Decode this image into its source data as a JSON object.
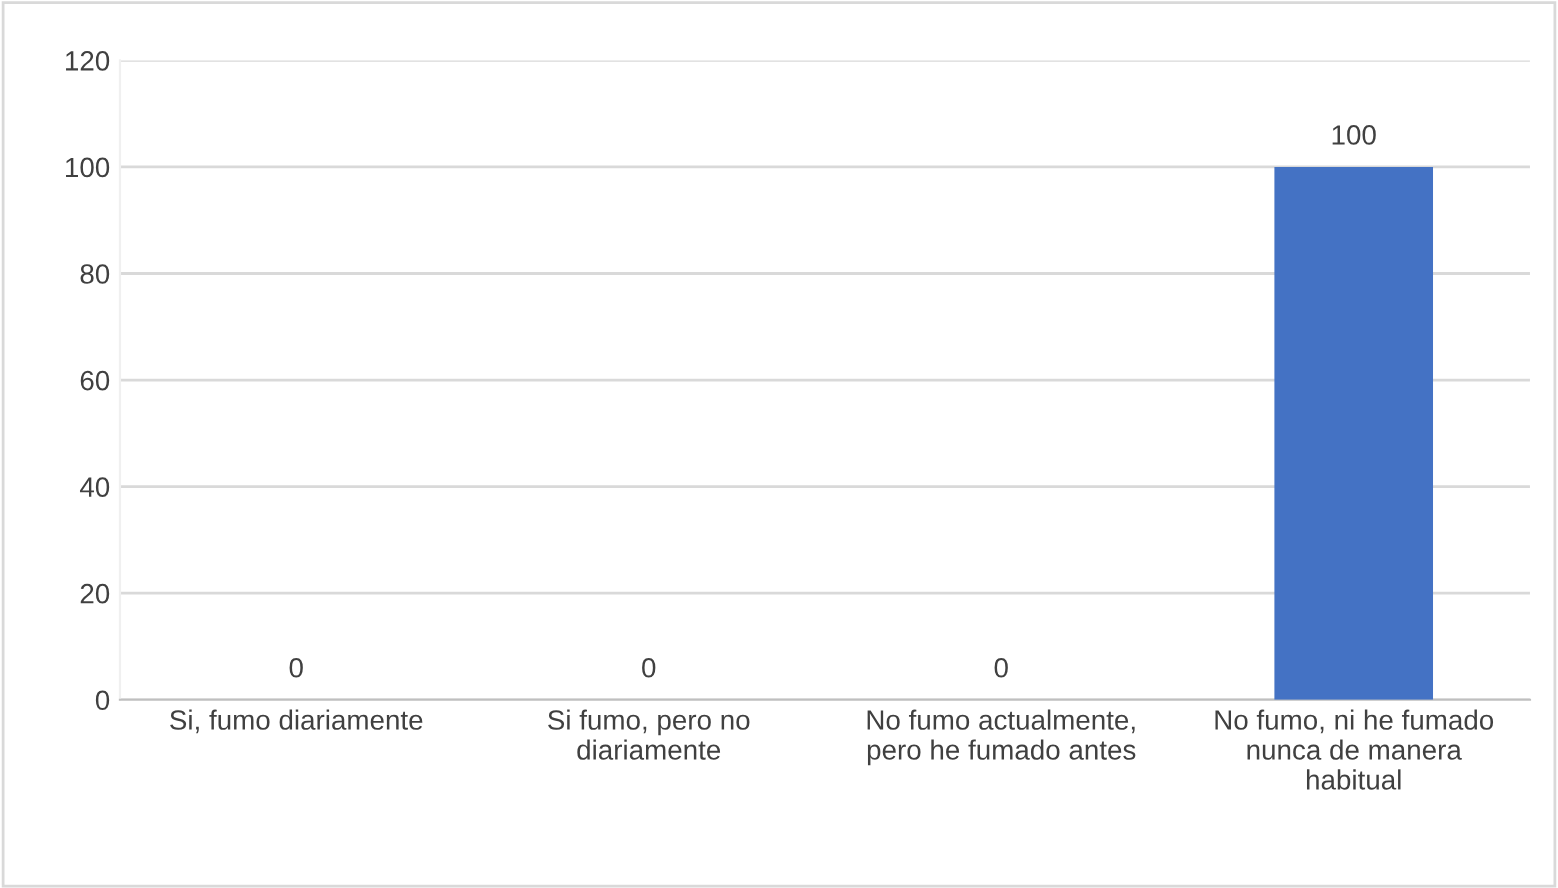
{
  "chart_data": {
    "type": "bar",
    "categories": [
      "Si, fumo diariamente",
      "Si fumo, pero no diariamente",
      "No fumo actualmente, pero he fumado antes",
      "No fumo, ni he fumado nunca de manera habitual"
    ],
    "values": [
      0,
      0,
      0,
      100
    ],
    "color": "#4472c4",
    "ylim": [
      0,
      120
    ],
    "yticks": [
      0,
      20,
      40,
      60,
      80,
      100,
      120
    ],
    "grid": "y",
    "data_labels": true
  }
}
